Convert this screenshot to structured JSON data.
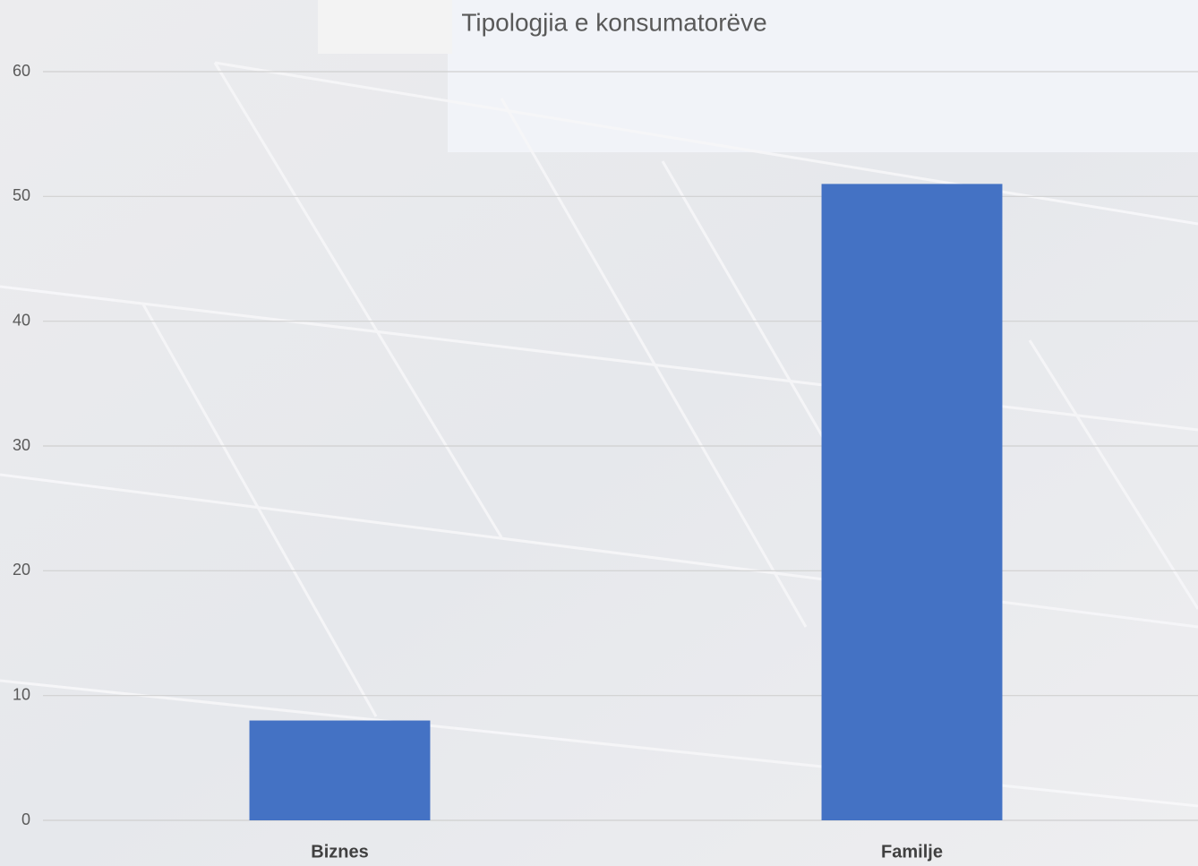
{
  "chart_data": {
    "type": "bar",
    "title": "Tipologjia e konsumatorëve",
    "categories": [
      "Biznes",
      "Familje"
    ],
    "values": [
      8,
      51
    ],
    "color": "#4472c4",
    "ylim": [
      0,
      60
    ],
    "yticks": [
      0,
      10,
      20,
      30,
      40,
      50,
      60
    ],
    "grid": true
  }
}
